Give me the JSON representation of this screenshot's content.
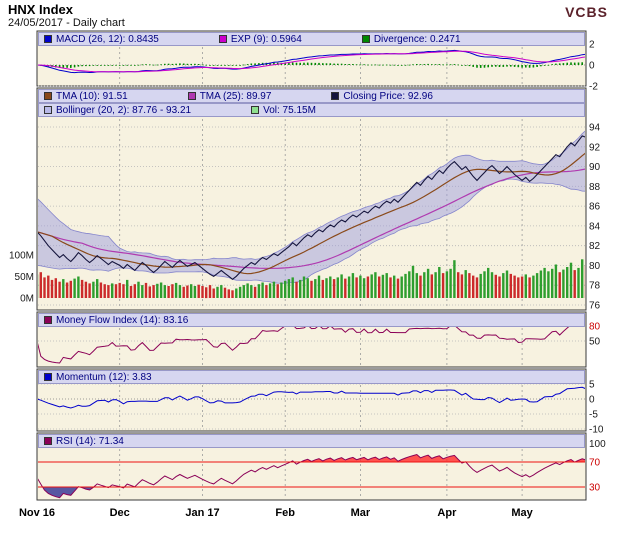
{
  "header": {
    "title": "HNX Index",
    "subtitle": "24/05/2017 - Daily chart",
    "brand": "VCBS"
  },
  "colors": {
    "panel_bg": "#f7f2e0",
    "panel_border": "#3a3a3a",
    "legend_bg": "#d6d6f0",
    "legend_text": "#000080",
    "grid": "#9a9a9a",
    "grid_dot": "#b5b5b5",
    "threshold_red": "#ee1111",
    "close_line": "#14143c",
    "tma10": "#8a4a1a",
    "tma25": "#b03ab0",
    "bollinger_fill": "#9e9edd",
    "bollinger_edge": "#8585cc",
    "vol_up": "#2e9e2e",
    "vol_down": "#cc2b2b",
    "macd_line": "#0000cc",
    "exp_line": "#cc00cc",
    "divergence_bar": "#008800",
    "mfi_line": "#8b0057",
    "momentum_line": "#0000cc",
    "rsi_line": "#8b0057",
    "rsi_over_fill": "#ff2a2a",
    "rsi_under_fill": "#3c3c96",
    "tick_text": "#1a1a1a",
    "x_label_text": "#000000"
  },
  "chart_data": {
    "type": "line",
    "title": "HNX Index - Daily chart - 24/05/2017",
    "n_points": 147,
    "x_axis": {
      "labels": [
        {
          "label": "Nov 16",
          "day": 0
        },
        {
          "label": "Dec",
          "day": 22
        },
        {
          "label": "Jan 17",
          "day": 44
        },
        {
          "label": "Feb",
          "day": 66
        },
        {
          "label": "Mar",
          "day": 86
        },
        {
          "label": "Apr",
          "day": 109
        },
        {
          "label": "May",
          "day": 129
        }
      ],
      "month_gridline_days": [
        22,
        44,
        66,
        86,
        109,
        129
      ]
    },
    "close": [
      83.4,
      83.0,
      82.5,
      82.0,
      81.6,
      81.2,
      80.8,
      81.1,
      80.7,
      80.4,
      80.8,
      81.3,
      81.0,
      80.6,
      80.3,
      80.6,
      81.0,
      80.7,
      80.4,
      80.1,
      80.4,
      80.2,
      80.0,
      79.7,
      80.1,
      79.8,
      79.5,
      79.9,
      80.3,
      80.0,
      79.6,
      79.3,
      79.6,
      80.0,
      80.4,
      80.1,
      79.8,
      80.2,
      80.5,
      80.2,
      79.9,
      80.1,
      80.3,
      80.0,
      79.7,
      79.4,
      79.1,
      78.9,
      79.2,
      79.5,
      79.2,
      78.9,
      78.6,
      78.9,
      79.3,
      79.7,
      80.0,
      80.3,
      80.1,
      80.5,
      80.8,
      80.6,
      80.9,
      81.2,
      81.0,
      81.3,
      81.6,
      81.9,
      82.3,
      82.0,
      82.4,
      82.8,
      83.1,
      82.9,
      83.3,
      83.6,
      83.4,
      83.8,
      84.1,
      83.9,
      84.3,
      84.6,
      84.4,
      84.8,
      85.1,
      84.9,
      85.2,
      85.5,
      85.3,
      85.7,
      86.0,
      85.8,
      86.2,
      86.5,
      86.3,
      86.7,
      86.4,
      86.8,
      87.2,
      87.6,
      88.0,
      88.4,
      88.1,
      88.6,
      89.0,
      88.7,
      89.2,
      89.6,
      89.3,
      89.8,
      90.2,
      90.5,
      90.1,
      89.7,
      90.0,
      89.5,
      89.0,
      88.6,
      89.0,
      89.4,
      89.8,
      90.1,
      89.7,
      89.3,
      89.6,
      90.0,
      89.6,
      89.2,
      88.9,
      88.6,
      88.9,
      88.5,
      88.8,
      89.2,
      89.6,
      90.0,
      90.4,
      90.8,
      91.2,
      91.0,
      91.5,
      92.0,
      92.4,
      92.1,
      92.6,
      93.1,
      92.96
    ],
    "volume_m": [
      55,
      60,
      48,
      52,
      42,
      46,
      38,
      44,
      36,
      40,
      45,
      50,
      42,
      38,
      34,
      38,
      44,
      36,
      32,
      30,
      34,
      32,
      35,
      32,
      42,
      28,
      32,
      38,
      30,
      35,
      27,
      30,
      33,
      36,
      30,
      28,
      32,
      35,
      30,
      26,
      29,
      32,
      28,
      31,
      28,
      25,
      30,
      22,
      26,
      30,
      24,
      20,
      18,
      22,
      26,
      30,
      34,
      30,
      26,
      32,
      36,
      30,
      34,
      38,
      32,
      36,
      40,
      44,
      48,
      38,
      42,
      50,
      46,
      40,
      44,
      52,
      42,
      46,
      50,
      44,
      48,
      55,
      45,
      50,
      58,
      48,
      52,
      46,
      50,
      55,
      60,
      50,
      54,
      58,
      48,
      52,
      45,
      50,
      56,
      62,
      75,
      58,
      52,
      60,
      68,
      55,
      60,
      72,
      58,
      62,
      68,
      88,
      60,
      55,
      65,
      58,
      52,
      48,
      56,
      62,
      70,
      60,
      54,
      50,
      58,
      64,
      56,
      52,
      48,
      50,
      55,
      48,
      52,
      58,
      64,
      70,
      62,
      68,
      78,
      60,
      66,
      72,
      82,
      65,
      70,
      90,
      75.15
    ],
    "panels": [
      {
        "id": "macd",
        "ylim": [
          -2.6,
          2.6
        ],
        "ticks": [
          {
            "v": 2,
            "label": "2"
          },
          {
            "v": 0,
            "label": "0"
          },
          {
            "v": -2,
            "label": "-2"
          }
        ],
        "legend": [
          {
            "label": "MACD (26, 12): 0.8435",
            "color": "#0000cc"
          },
          {
            "label": "EXP (9): 0.5964",
            "color": "#cc00cc"
          },
          {
            "label": "Divergence: 0.2471",
            "color": "#008800"
          }
        ]
      },
      {
        "id": "price",
        "ylim": [
          76,
          94
        ],
        "ticks": [
          {
            "v": 94,
            "label": "94"
          },
          {
            "v": 92,
            "label": "92"
          },
          {
            "v": 90,
            "label": "90"
          },
          {
            "v": 88,
            "label": "88"
          },
          {
            "v": 86,
            "label": "86"
          },
          {
            "v": 84,
            "label": "84"
          },
          {
            "v": 82,
            "label": "82"
          },
          {
            "v": 80,
            "label": "80"
          },
          {
            "v": 78,
            "label": "78"
          },
          {
            "v": 76,
            "label": "76"
          }
        ],
        "volume_ticks": [
          {
            "v": 100,
            "label": "100M"
          },
          {
            "v": 50,
            "label": "50M"
          },
          {
            "v": 0,
            "label": "0M"
          }
        ],
        "legend_rows": [
          [
            {
              "label": "TMA (10): 91.51",
              "color": "#8a4a1a"
            },
            {
              "label": "TMA (25): 89.97",
              "color": "#b03ab0"
            },
            {
              "label": "Closing Price: 92.96",
              "color": "#14143c"
            }
          ],
          [
            {
              "label": "Bollinger (20, 2): 87.76 - 93.21",
              "color": "#b8b8e8"
            },
            {
              "label": "Vol: 75.15M",
              "color": "#8fe08f"
            }
          ]
        ]
      },
      {
        "id": "mfi",
        "ylim": [
          0,
          100
        ],
        "ticks": [
          {
            "v": 80,
            "label": "80",
            "red": true
          },
          {
            "v": 50,
            "label": "50"
          }
        ],
        "legend": [
          {
            "label": "Money Flow Index (14): 83.16",
            "color": "#8b0057"
          }
        ]
      },
      {
        "id": "momentum",
        "ylim": [
          -12,
          7
        ],
        "ticks": [
          {
            "v": 5,
            "label": "5"
          },
          {
            "v": 0,
            "label": "0"
          },
          {
            "v": -5,
            "label": "-5"
          },
          {
            "v": -10,
            "label": "-10"
          }
        ],
        "legend": [
          {
            "label": "Momentum (12): 3.83",
            "color": "#0000cc"
          }
        ]
      },
      {
        "id": "rsi",
        "ylim": [
          0,
          100
        ],
        "thresholds": [
          70,
          30
        ],
        "ticks": [
          {
            "v": 100,
            "label": "100"
          },
          {
            "v": 70,
            "label": "70",
            "red": true
          },
          {
            "v": 30,
            "label": "30",
            "red": true
          }
        ],
        "legend": [
          {
            "label": "RSI (14): 71.34",
            "color": "#8b0057"
          }
        ]
      }
    ]
  }
}
